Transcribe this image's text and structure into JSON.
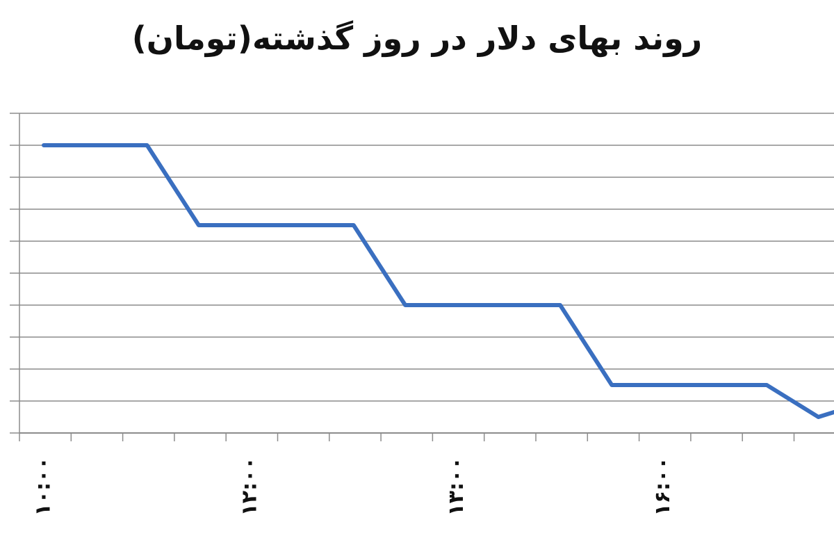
{
  "chart_data": {
    "type": "line",
    "title": "روند بهای دلار در روز گذشته(تومان)",
    "xlabel": "",
    "ylabel": "",
    "x": [
      1,
      2,
      3,
      4,
      5,
      6,
      7,
      8,
      9,
      10,
      11,
      12,
      13,
      14,
      15,
      16,
      17
    ],
    "x_tick_labels": [
      {
        "x": 1,
        "label": "۱۰:۰۰"
      },
      {
        "x": 5,
        "label": "۱۲:۰۰"
      },
      {
        "x": 9,
        "label": "۱۳:۰۰"
      },
      {
        "x": 13,
        "label": "۱۶:۰۰"
      }
    ],
    "series": [
      {
        "color": "#3a6fc0",
        "values": [
          9,
          9,
          9,
          6.5,
          6.5,
          6.5,
          6.5,
          4,
          4,
          4,
          4,
          1.5,
          1.5,
          1.5,
          1.5,
          0.5,
          1
        ]
      }
    ],
    "ylim": [
      0,
      10
    ],
    "y_gridlines": [
      0,
      1,
      2,
      3,
      4,
      5,
      6,
      7,
      8,
      9,
      10
    ],
    "grid": true,
    "y_tick_labels_visible": false
  }
}
